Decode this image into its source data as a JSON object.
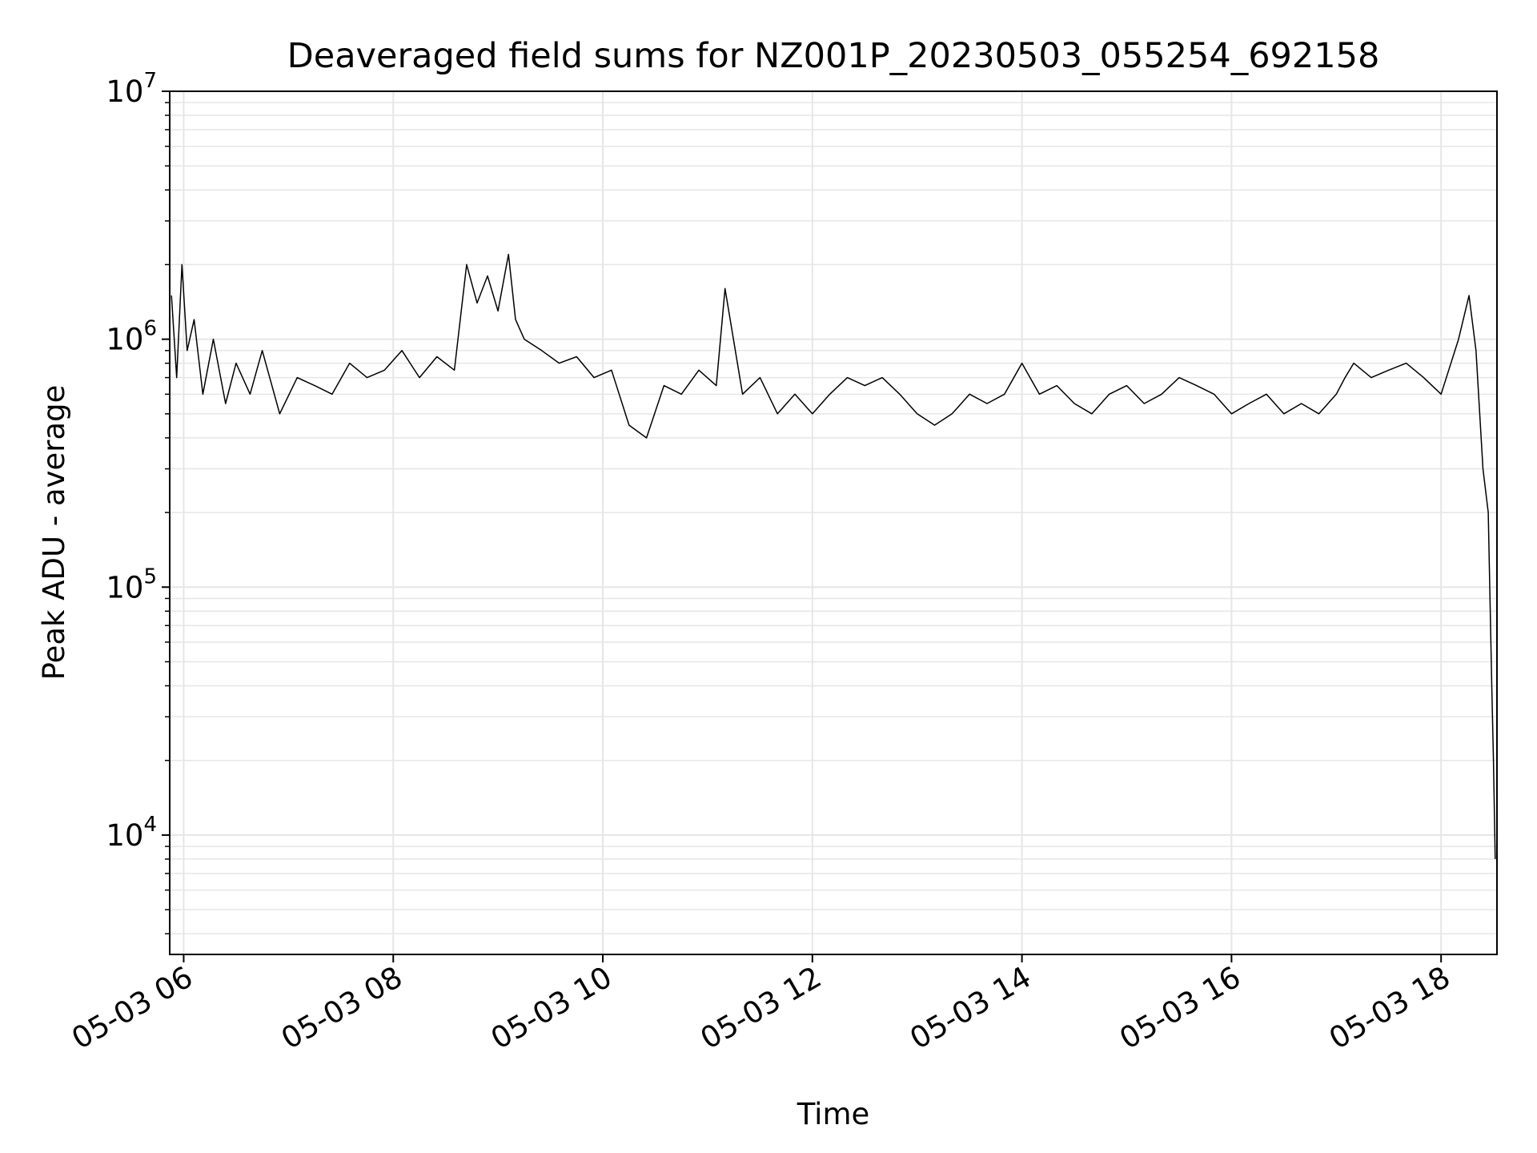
{
  "chart_data": {
    "type": "line",
    "title": "Deaveraged field sums for NZ001P_20230503_055254_692158",
    "xlabel": "Time",
    "ylabel": "Peak ADU - average",
    "yscale": "log",
    "ylim": [
      3300,
      10000000
    ],
    "xlim": [
      "2023-05-03 05:52",
      "2023-05-03 18:32"
    ],
    "grid": true,
    "line_color": "#000000",
    "grid_color": "#e6e6e6",
    "x_ticks": [
      {
        "value": "2023-05-03 06:00",
        "label": "05-03 06"
      },
      {
        "value": "2023-05-03 08:00",
        "label": "05-03 08"
      },
      {
        "value": "2023-05-03 10:00",
        "label": "05-03 10"
      },
      {
        "value": "2023-05-03 12:00",
        "label": "05-03 12"
      },
      {
        "value": "2023-05-03 14:00",
        "label": "05-03 14"
      },
      {
        "value": "2023-05-03 16:00",
        "label": "05-03 16"
      },
      {
        "value": "2023-05-03 18:00",
        "label": "05-03 18"
      }
    ],
    "y_ticks": [
      {
        "value": 10000,
        "base": "10",
        "exp": "4"
      },
      {
        "value": 100000,
        "base": "10",
        "exp": "5"
      },
      {
        "value": 1000000,
        "base": "10",
        "exp": "6"
      },
      {
        "value": 10000000,
        "base": "10",
        "exp": "7"
      }
    ],
    "series": [
      {
        "x": [
          "2023-05-03 05:53",
          "2023-05-03 05:56",
          "2023-05-03 05:59",
          "2023-05-03 06:02",
          "2023-05-03 06:06",
          "2023-05-03 06:11",
          "2023-05-03 06:17",
          "2023-05-03 06:24",
          "2023-05-03 06:30",
          "2023-05-03 06:38",
          "2023-05-03 06:45",
          "2023-05-03 06:55",
          "2023-05-03 07:05",
          "2023-05-03 07:15",
          "2023-05-03 07:25",
          "2023-05-03 07:35",
          "2023-05-03 07:45",
          "2023-05-03 07:55",
          "2023-05-03 08:05",
          "2023-05-03 08:15",
          "2023-05-03 08:25",
          "2023-05-03 08:35",
          "2023-05-03 08:42",
          "2023-05-03 08:48",
          "2023-05-03 08:54",
          "2023-05-03 09:00",
          "2023-05-03 09:06",
          "2023-05-03 09:10",
          "2023-05-03 09:15",
          "2023-05-03 09:25",
          "2023-05-03 09:35",
          "2023-05-03 09:45",
          "2023-05-03 09:55",
          "2023-05-03 10:05",
          "2023-05-03 10:15",
          "2023-05-03 10:25",
          "2023-05-03 10:35",
          "2023-05-03 10:45",
          "2023-05-03 10:55",
          "2023-05-03 11:05",
          "2023-05-03 11:10",
          "2023-05-03 11:20",
          "2023-05-03 11:30",
          "2023-05-03 11:40",
          "2023-05-03 11:50",
          "2023-05-03 12:00",
          "2023-05-03 12:10",
          "2023-05-03 12:20",
          "2023-05-03 12:30",
          "2023-05-03 12:40",
          "2023-05-03 12:50",
          "2023-05-03 13:00",
          "2023-05-03 13:10",
          "2023-05-03 13:20",
          "2023-05-03 13:30",
          "2023-05-03 13:40",
          "2023-05-03 13:50",
          "2023-05-03 14:00",
          "2023-05-03 14:10",
          "2023-05-03 14:20",
          "2023-05-03 14:30",
          "2023-05-03 14:40",
          "2023-05-03 14:50",
          "2023-05-03 15:00",
          "2023-05-03 15:10",
          "2023-05-03 15:20",
          "2023-05-03 15:30",
          "2023-05-03 15:40",
          "2023-05-03 15:50",
          "2023-05-03 16:00",
          "2023-05-03 16:10",
          "2023-05-03 16:20",
          "2023-05-03 16:30",
          "2023-05-03 16:40",
          "2023-05-03 16:50",
          "2023-05-03 17:00",
          "2023-05-03 17:05",
          "2023-05-03 17:10",
          "2023-05-03 17:20",
          "2023-05-03 17:30",
          "2023-05-03 17:40",
          "2023-05-03 17:50",
          "2023-05-03 18:00",
          "2023-05-03 18:10",
          "2023-05-03 18:16",
          "2023-05-03 18:20",
          "2023-05-03 18:24",
          "2023-05-03 18:27",
          "2023-05-03 18:29",
          "2023-05-03 18:30",
          "2023-05-03 18:31"
        ],
        "y": [
          1500000,
          700000,
          2000000,
          900000,
          1200000,
          600000,
          1000000,
          550000,
          800000,
          600000,
          900000,
          500000,
          700000,
          650000,
          600000,
          800000,
          700000,
          750000,
          900000,
          700000,
          850000,
          750000,
          2000000,
          1400000,
          1800000,
          1300000,
          2200000,
          1200000,
          1000000,
          900000,
          800000,
          850000,
          700000,
          750000,
          450000,
          400000,
          650000,
          600000,
          750000,
          650000,
          1600000,
          600000,
          700000,
          500000,
          600000,
          500000,
          600000,
          700000,
          650000,
          700000,
          600000,
          500000,
          450000,
          500000,
          600000,
          550000,
          600000,
          800000,
          600000,
          650000,
          550000,
          500000,
          600000,
          650000,
          550000,
          600000,
          700000,
          650000,
          600000,
          500000,
          550000,
          600000,
          500000,
          550000,
          500000,
          600000,
          700000,
          800000,
          700000,
          750000,
          800000,
          700000,
          600000,
          1000000,
          1500000,
          900000,
          300000,
          200000,
          40000,
          20000,
          8000
        ]
      }
    ]
  }
}
